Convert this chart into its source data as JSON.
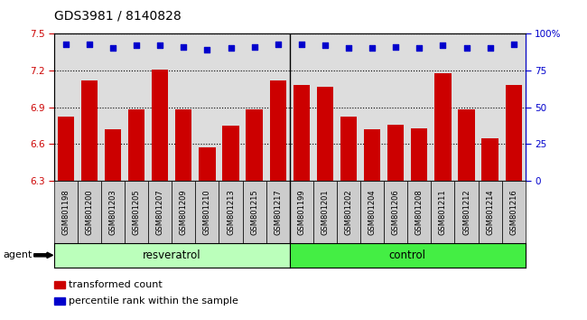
{
  "title": "GDS3981 / 8140828",
  "samples": [
    "GSM801198",
    "GSM801200",
    "GSM801203",
    "GSM801205",
    "GSM801207",
    "GSM801209",
    "GSM801210",
    "GSM801213",
    "GSM801215",
    "GSM801217",
    "GSM801199",
    "GSM801201",
    "GSM801202",
    "GSM801204",
    "GSM801206",
    "GSM801208",
    "GSM801211",
    "GSM801212",
    "GSM801214",
    "GSM801216"
  ],
  "bar_values": [
    6.82,
    7.12,
    6.72,
    6.88,
    7.21,
    6.88,
    6.57,
    6.75,
    6.88,
    7.12,
    7.08,
    7.07,
    6.82,
    6.72,
    6.76,
    6.73,
    7.18,
    6.88,
    6.65,
    7.08
  ],
  "percentile_values": [
    93,
    93,
    90,
    92,
    92,
    91,
    89,
    90,
    91,
    93,
    93,
    92,
    90,
    90,
    91,
    90,
    92,
    90,
    90,
    93
  ],
  "bar_color": "#cc0000",
  "dot_color": "#0000cc",
  "ylim_left": [
    6.3,
    7.5
  ],
  "ylim_right": [
    0,
    100
  ],
  "yticks_left": [
    6.3,
    6.6,
    6.9,
    7.2,
    7.5
  ],
  "yticks_right": [
    0,
    25,
    50,
    75,
    100
  ],
  "ytick_labels_right": [
    "0",
    "25",
    "50",
    "75",
    "100%"
  ],
  "resveratrol_count": 10,
  "control_count": 10,
  "resveratrol_label": "resveratrol",
  "control_label": "control",
  "agent_label": "agent",
  "legend_bar_label": "transformed count",
  "legend_dot_label": "percentile rank within the sample",
  "resveratrol_color": "#bbffbb",
  "control_color": "#44ee44",
  "label_bg_color": "#cccccc",
  "bar_width": 0.7,
  "grid_color": "#000000",
  "plot_bg_color": "#dddddd",
  "title_fontsize": 10,
  "tick_fontsize": 7.5,
  "sample_fontsize": 6.0
}
